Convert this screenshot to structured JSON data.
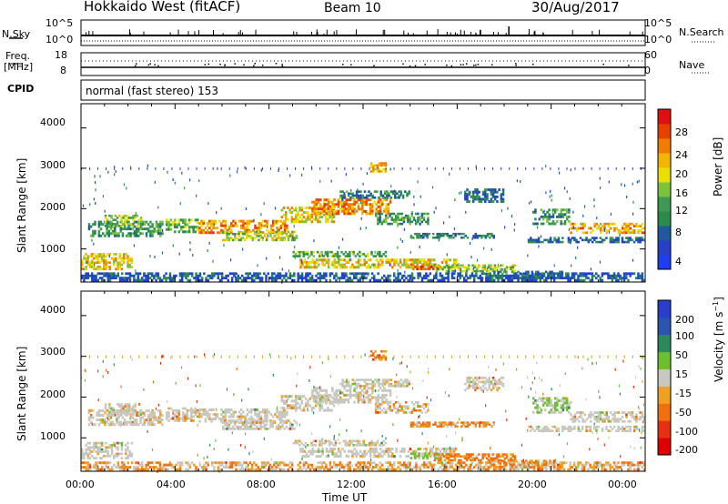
{
  "header": {
    "title": "Hokkaido West (fitACF)",
    "beam": "Beam 10",
    "date": "30/Aug/2017"
  },
  "noise_panel": {
    "left_label": "N.Sky",
    "right_label": "N.Search",
    "left_top": "10^5",
    "left_bottom": "10^0",
    "right_top": "10^5",
    "right_bottom": "10^0"
  },
  "freq_panel": {
    "left_label_1": "Freq.",
    "left_label_2": "[MHz]",
    "left_top": "18",
    "left_bottom": "8",
    "right_top": "60",
    "right_bottom": "0",
    "right_label": "Nave"
  },
  "cpid": {
    "label": "CPID",
    "mode": "normal (fast stereo) 153"
  },
  "colors": {
    "power": [
      "#1e3ff0",
      "#2840c8",
      "#1f5aa0",
      "#2a8c4a",
      "#3c9a55",
      "#7cc23a",
      "#e8e000",
      "#f4b400",
      "#f07c00",
      "#e84000",
      "#e01010"
    ],
    "velocity": [
      "#2a3ecc",
      "#2c55b0",
      "#2a8a5a",
      "#6cc030",
      "#c8c8c0",
      "#f0a020",
      "#f07010",
      "#e83010",
      "#e00000"
    ]
  },
  "chart_data": [
    {
      "type": "heatmap",
      "name": "power",
      "xlabel": "",
      "ylabel": "Slant Range [km]",
      "xlim": [
        "00:00",
        "24:00"
      ],
      "ylim": [
        180,
        4600
      ],
      "yticks": [
        "1000",
        "2000",
        "3000",
        "4000"
      ],
      "colorbar": {
        "label": "Power [dB]",
        "range": [
          0,
          32
        ],
        "ticks": [
          "4",
          "8",
          "12",
          "16",
          "20",
          "24",
          "28"
        ]
      },
      "regions": [
        {
          "t": [
            0.0,
            2.2
          ],
          "r": [
            480,
            900
          ],
          "level": 20
        },
        {
          "t": [
            0.3,
            3.5
          ],
          "r": [
            1300,
            1700
          ],
          "level": 12
        },
        {
          "t": [
            1.0,
            2.6
          ],
          "r": [
            1550,
            1850
          ],
          "level": 16
        },
        {
          "t": [
            3.6,
            5.0
          ],
          "r": [
            1400,
            1750
          ],
          "level": 14
        },
        {
          "t": [
            5.0,
            8.8
          ],
          "r": [
            1380,
            1720
          ],
          "level": 24
        },
        {
          "t": [
            6.0,
            9.2
          ],
          "r": [
            1200,
            1450
          ],
          "level": 18
        },
        {
          "t": [
            8.5,
            10.8
          ],
          "r": [
            1650,
            2050
          ],
          "level": 20
        },
        {
          "t": [
            9.8,
            13.2
          ],
          "r": [
            1850,
            2250
          ],
          "level": 24
        },
        {
          "t": [
            11.0,
            14.0
          ],
          "r": [
            2250,
            2450
          ],
          "level": 10
        },
        {
          "t": [
            12.5,
            14.8
          ],
          "r": [
            1600,
            1900
          ],
          "level": 12
        },
        {
          "t": [
            9.3,
            16.0
          ],
          "r": [
            520,
            760
          ],
          "level": 20
        },
        {
          "t": [
            9.0,
            13.0
          ],
          "r": [
            800,
            950
          ],
          "level": 14
        },
        {
          "t": [
            14.0,
            15.2
          ],
          "r": [
            480,
            640
          ],
          "level": 26
        },
        {
          "t": [
            15.0,
            18.5
          ],
          "r": [
            430,
            620
          ],
          "level": 16
        },
        {
          "t": [
            17.2,
            20.5
          ],
          "r": [
            260,
            460
          ],
          "level": 10
        },
        {
          "t": [
            14.0,
            17.6
          ],
          "r": [
            1260,
            1400
          ],
          "level": 10
        },
        {
          "t": [
            16.3,
            18.0
          ],
          "r": [
            2150,
            2500
          ],
          "level": 8
        },
        {
          "t": [
            19.2,
            20.8
          ],
          "r": [
            1600,
            2000
          ],
          "level": 12
        },
        {
          "t": [
            20.8,
            24.0
          ],
          "r": [
            1380,
            1650
          ],
          "level": 22
        },
        {
          "t": [
            19.0,
            24.0
          ],
          "r": [
            1150,
            1300
          ],
          "level": 8
        },
        {
          "t": [
            12.3,
            13.0
          ],
          "r": [
            2900,
            3150
          ],
          "level": 22
        },
        {
          "t": [
            0.0,
            24.0
          ],
          "r": [
            200,
            420
          ],
          "level": 6
        }
      ]
    },
    {
      "type": "heatmap",
      "name": "velocity",
      "xlabel": "Time UT",
      "ylabel": "Slant Range [km]",
      "xlim": [
        "00:00",
        "24:00"
      ],
      "xticks": [
        "00:00",
        "04:00",
        "08:00",
        "12:00",
        "16:00",
        "20:00",
        "00:00"
      ],
      "ylim": [
        180,
        4600
      ],
      "yticks": [
        "1000",
        "2000",
        "3000",
        "4000"
      ],
      "colorbar": {
        "label": "Velocity [m s^-1]",
        "range": [
          -250,
          250
        ],
        "ticks": [
          "200",
          "100",
          "50",
          "15",
          "-15",
          "-50",
          "-100",
          "-200"
        ]
      },
      "regions": [
        {
          "t": [
            0.0,
            2.2
          ],
          "r": [
            480,
            900
          ],
          "level": 0
        },
        {
          "t": [
            0.3,
            3.5
          ],
          "r": [
            1300,
            1700
          ],
          "level": 0
        },
        {
          "t": [
            1.0,
            2.6
          ],
          "r": [
            1550,
            1850
          ],
          "level": 0
        },
        {
          "t": [
            3.6,
            5.0
          ],
          "r": [
            1400,
            1750
          ],
          "level": 0
        },
        {
          "t": [
            5.0,
            8.8
          ],
          "r": [
            1380,
            1720
          ],
          "level": 0
        },
        {
          "t": [
            6.0,
            9.2
          ],
          "r": [
            1200,
            1450
          ],
          "level": 0
        },
        {
          "t": [
            8.5,
            10.8
          ],
          "r": [
            1650,
            2050
          ],
          "level": 0
        },
        {
          "t": [
            9.8,
            13.2
          ],
          "r": [
            1850,
            2250
          ],
          "level": 0
        },
        {
          "t": [
            11.0,
            14.0
          ],
          "r": [
            2250,
            2450
          ],
          "level": 0
        },
        {
          "t": [
            12.5,
            14.8
          ],
          "r": [
            1600,
            1900
          ],
          "level": -20
        },
        {
          "t": [
            9.3,
            16.0
          ],
          "r": [
            520,
            760
          ],
          "level": 0
        },
        {
          "t": [
            9.0,
            13.0
          ],
          "r": [
            800,
            950
          ],
          "level": 0
        },
        {
          "t": [
            14.0,
            15.2
          ],
          "r": [
            480,
            640
          ],
          "level": 40
        },
        {
          "t": [
            15.0,
            18.5
          ],
          "r": [
            430,
            620
          ],
          "level": -40
        },
        {
          "t": [
            17.2,
            20.5
          ],
          "r": [
            260,
            460
          ],
          "level": -40
        },
        {
          "t": [
            14.0,
            17.6
          ],
          "r": [
            1260,
            1400
          ],
          "level": -30
        },
        {
          "t": [
            16.3,
            18.0
          ],
          "r": [
            2150,
            2500
          ],
          "level": 0
        },
        {
          "t": [
            19.2,
            20.8
          ],
          "r": [
            1600,
            2000
          ],
          "level": 30
        },
        {
          "t": [
            20.8,
            24.0
          ],
          "r": [
            1380,
            1650
          ],
          "level": 0
        },
        {
          "t": [
            19.0,
            24.0
          ],
          "r": [
            1150,
            1300
          ],
          "level": 0
        },
        {
          "t": [
            12.3,
            13.0
          ],
          "r": [
            2900,
            3150
          ],
          "level": -40
        },
        {
          "t": [
            0.0,
            24.0
          ],
          "r": [
            200,
            420
          ],
          "level": -20
        }
      ]
    }
  ]
}
